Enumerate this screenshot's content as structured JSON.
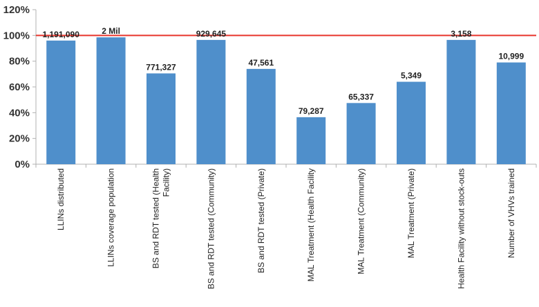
{
  "chart_data": {
    "type": "bar",
    "title": "",
    "xlabel": "",
    "ylabel": "",
    "ylim": [
      0,
      120
    ],
    "yticks": [
      "0%",
      "20%",
      "40%",
      "60%",
      "80%",
      "100%",
      "120%"
    ],
    "grid": false,
    "reference_line": {
      "value": 100,
      "color": "#e8332a"
    },
    "bar_color": "#4f8fcb",
    "categories": [
      [
        "LLINs distributed"
      ],
      [
        "LLINs coverage population"
      ],
      [
        "BS and RDT tested (Health",
        "Facility)"
      ],
      [
        "BS and RDT tested (Community)"
      ],
      [
        "BS and RDT tested (Private)"
      ],
      [
        "MAL Treatment (Health Facility"
      ],
      [
        "MAL Treatment (Community)"
      ],
      [
        "MAL Treatment (Private)"
      ],
      [
        "Health Facility without stock-outs"
      ],
      [
        "Number of VHVs trained"
      ]
    ],
    "values": [
      96,
      98.5,
      70.5,
      96.5,
      74,
      36.5,
      47.5,
      64,
      96.5,
      79
    ],
    "data_labels": [
      "1,191,090",
      "2 Mil",
      "771,327",
      "929,645",
      "47,561",
      "79,287",
      "65,337",
      "5,349",
      "3,158",
      "10,999"
    ]
  }
}
